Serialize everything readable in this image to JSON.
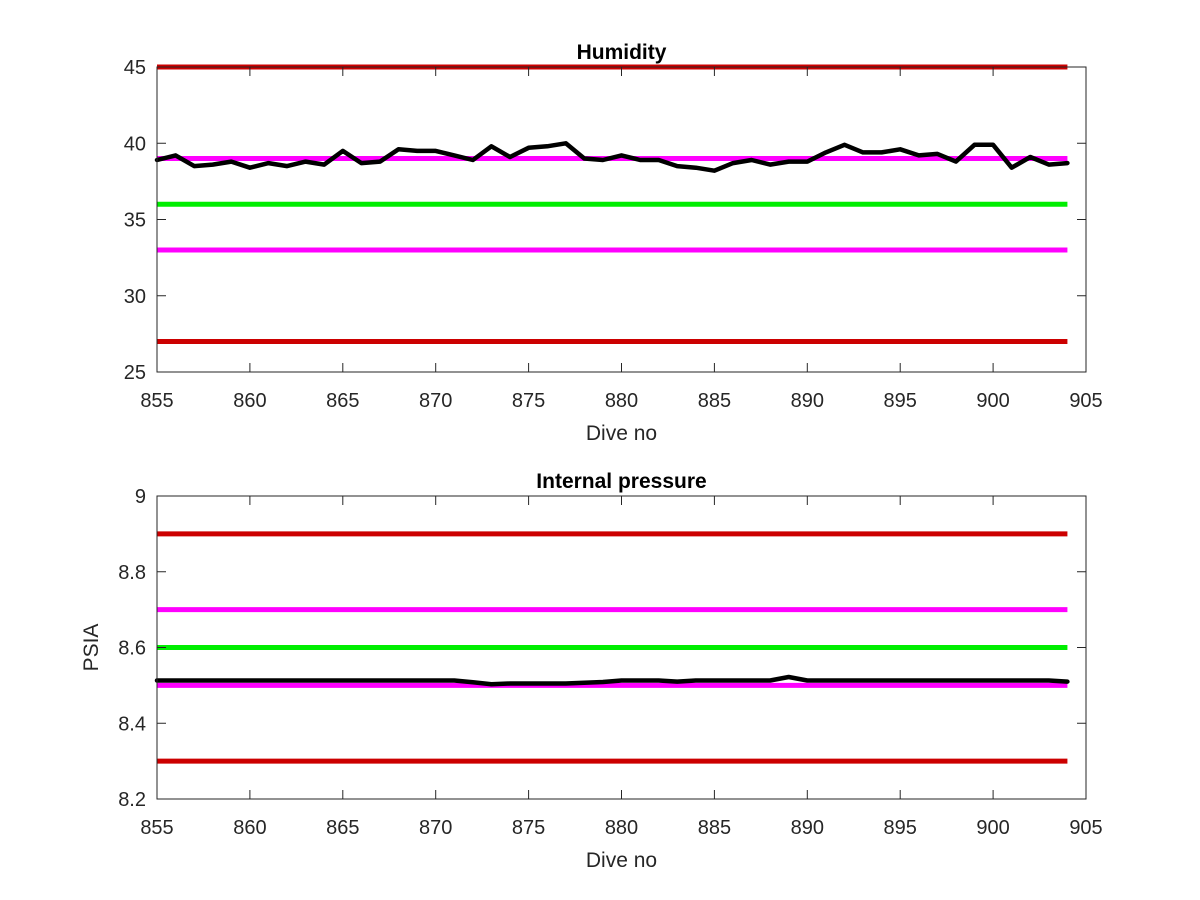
{
  "chart_data": [
    {
      "type": "line",
      "title": "Humidity",
      "xlabel": "Dive no",
      "ylabel": "",
      "xlim": [
        855,
        905
      ],
      "ylim": [
        25,
        45
      ],
      "xticks": [
        "855",
        "860",
        "865",
        "870",
        "875",
        "880",
        "885",
        "890",
        "895",
        "900",
        "905"
      ],
      "yticks": [
        "25",
        "30",
        "35",
        "40",
        "45"
      ],
      "grid": false,
      "thresholds": [
        {
          "value": 45,
          "color": "#cc0000",
          "x": [
            855,
            904
          ]
        },
        {
          "value": 27,
          "color": "#cc0000",
          "x": [
            855,
            904
          ]
        },
        {
          "value": 39,
          "color": "#ff00ff",
          "x": [
            855,
            904
          ]
        },
        {
          "value": 33,
          "color": "#ff00ff",
          "x": [
            855,
            904
          ]
        },
        {
          "value": 36,
          "color": "#00ee00",
          "x": [
            855,
            904
          ]
        }
      ],
      "series": [
        {
          "color": "#000000",
          "x": [
            855,
            856,
            857,
            858,
            859,
            860,
            861,
            862,
            863,
            864,
            865,
            866,
            867,
            868,
            869,
            870,
            871,
            872,
            873,
            874,
            875,
            876,
            877,
            878,
            879,
            880,
            881,
            882,
            883,
            884,
            885,
            886,
            887,
            888,
            889,
            890,
            891,
            892,
            893,
            894,
            895,
            896,
            897,
            898,
            899,
            900,
            901,
            902,
            903,
            904
          ],
          "values": [
            38.9,
            39.2,
            38.5,
            38.6,
            38.8,
            38.4,
            38.7,
            38.5,
            38.8,
            38.6,
            39.5,
            38.7,
            38.8,
            39.6,
            39.5,
            39.5,
            39.2,
            38.9,
            39.8,
            39.1,
            39.7,
            39.8,
            40.0,
            39.0,
            38.9,
            39.2,
            38.9,
            38.9,
            38.5,
            38.4,
            38.2,
            38.7,
            38.9,
            38.6,
            38.8,
            38.8,
            39.4,
            39.9,
            39.4,
            39.4,
            39.6,
            39.2,
            39.3,
            38.8,
            39.9,
            39.9,
            38.4,
            39.1,
            38.6,
            38.7
          ]
        }
      ]
    },
    {
      "type": "line",
      "title": "Internal pressure",
      "xlabel": "Dive no",
      "ylabel": "PSIA",
      "xlim": [
        855,
        905
      ],
      "ylim": [
        8.2,
        9
      ],
      "xticks": [
        "855",
        "860",
        "865",
        "870",
        "875",
        "880",
        "885",
        "890",
        "895",
        "900",
        "905"
      ],
      "yticks": [
        "8.2",
        "8.4",
        "8.6",
        "8.8",
        "9"
      ],
      "grid": false,
      "thresholds": [
        {
          "value": 8.9,
          "color": "#cc0000",
          "x": [
            855,
            904
          ]
        },
        {
          "value": 8.3,
          "color": "#cc0000",
          "x": [
            855,
            904
          ]
        },
        {
          "value": 8.7,
          "color": "#ff00ff",
          "x": [
            855,
            904
          ]
        },
        {
          "value": 8.5,
          "color": "#ff00ff",
          "x": [
            855,
            904
          ]
        },
        {
          "value": 8.6,
          "color": "#00ee00",
          "x": [
            855,
            904
          ]
        }
      ],
      "series": [
        {
          "color": "#000000",
          "x": [
            855,
            856,
            857,
            858,
            859,
            860,
            861,
            862,
            863,
            864,
            865,
            866,
            867,
            868,
            869,
            870,
            871,
            872,
            873,
            874,
            875,
            876,
            877,
            878,
            879,
            880,
            881,
            882,
            883,
            884,
            885,
            886,
            887,
            888,
            889,
            890,
            891,
            892,
            893,
            894,
            895,
            896,
            897,
            898,
            899,
            900,
            901,
            902,
            903,
            904
          ],
          "values": [
            8.513,
            8.513,
            8.513,
            8.513,
            8.513,
            8.513,
            8.513,
            8.513,
            8.513,
            8.513,
            8.513,
            8.513,
            8.513,
            8.513,
            8.513,
            8.513,
            8.513,
            8.508,
            8.503,
            8.505,
            8.505,
            8.505,
            8.505,
            8.507,
            8.509,
            8.513,
            8.513,
            8.513,
            8.51,
            8.513,
            8.513,
            8.513,
            8.513,
            8.513,
            8.522,
            8.513,
            8.513,
            8.513,
            8.513,
            8.513,
            8.513,
            8.513,
            8.513,
            8.513,
            8.513,
            8.513,
            8.513,
            8.513,
            8.513,
            8.51
          ]
        }
      ]
    }
  ]
}
